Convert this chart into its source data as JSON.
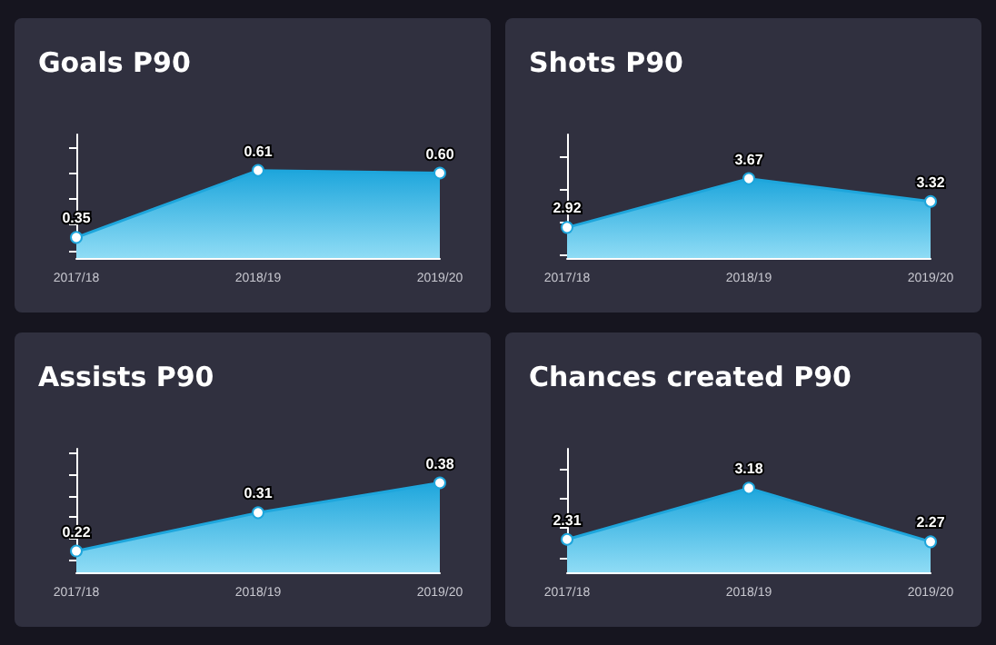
{
  "chart_data": [
    {
      "type": "area",
      "title": "Goals P90",
      "categories": [
        "2017/18",
        "2018/19",
        "2019/20"
      ],
      "values": [
        0.35,
        0.61,
        0.6
      ],
      "value_labels": [
        "0.35",
        "0.61",
        "0.60"
      ],
      "color": "#1ea6dc",
      "marker": "circle",
      "tick_labels": "x",
      "ylim": [
        0.27,
        0.75
      ],
      "yticks": [
        {
          "value": 0.3,
          "label": null
        },
        {
          "value": 0.4,
          "label": null
        },
        {
          "value": 0.5,
          "label": null
        },
        {
          "value": 0.6,
          "label": null
        },
        {
          "value": 0.7,
          "label": null
        }
      ]
    },
    {
      "type": "area",
      "title": "Shots P90",
      "categories": [
        "2017/18",
        "2018/19",
        "2019/20"
      ],
      "values": [
        2.92,
        3.67,
        3.32
      ],
      "color": "#1ea6dc",
      "data_labels": true,
      "marker": "circle",
      "tick_labels": "x",
      "ylim": [
        2.45,
        4.35
      ],
      "yticks": [
        {
          "value": 2.5,
          "label": null
        },
        {
          "value": 3,
          "label": null
        },
        {
          "value": 3.5,
          "label": null
        },
        {
          "value": 4,
          "label": null
        }
      ]
    },
    {
      "type": "area",
      "title": "Assists P90",
      "categories": [
        "2017/18",
        "2018/19",
        "2019/20"
      ],
      "values": [
        0.22,
        0.31,
        0.38
      ],
      "color": "#1ea6dc",
      "data_labels": true,
      "marker": "circle",
      "tick_labels": "x",
      "ylim": [
        0.17,
        0.46
      ],
      "yticks": [
        {
          "value": 0.2,
          "label": null
        },
        {
          "value": 0.25,
          "label": null
        },
        {
          "value": 0.3,
          "label": null
        },
        {
          "value": 0.35,
          "label": null
        },
        {
          "value": 0.4,
          "label": null
        },
        {
          "value": 0.45,
          "label": null
        }
      ]
    },
    {
      "type": "area",
      "title": "Chances created P90",
      "categories": [
        "2017/18",
        "2018/19",
        "2019/20"
      ],
      "values": [
        2.31,
        3.18,
        2.27
      ],
      "color": "#1ea6dc",
      "data_labels": true,
      "marker": "circle",
      "tick_labels": "x",
      "ylim": [
        1.75,
        3.85
      ],
      "yticks": [
        {
          "value": 2,
          "label": null
        },
        {
          "value": 2.5,
          "label": null
        },
        {
          "value": 3,
          "label": null
        },
        {
          "value": 3.5,
          "label": null
        }
      ]
    }
  ]
}
